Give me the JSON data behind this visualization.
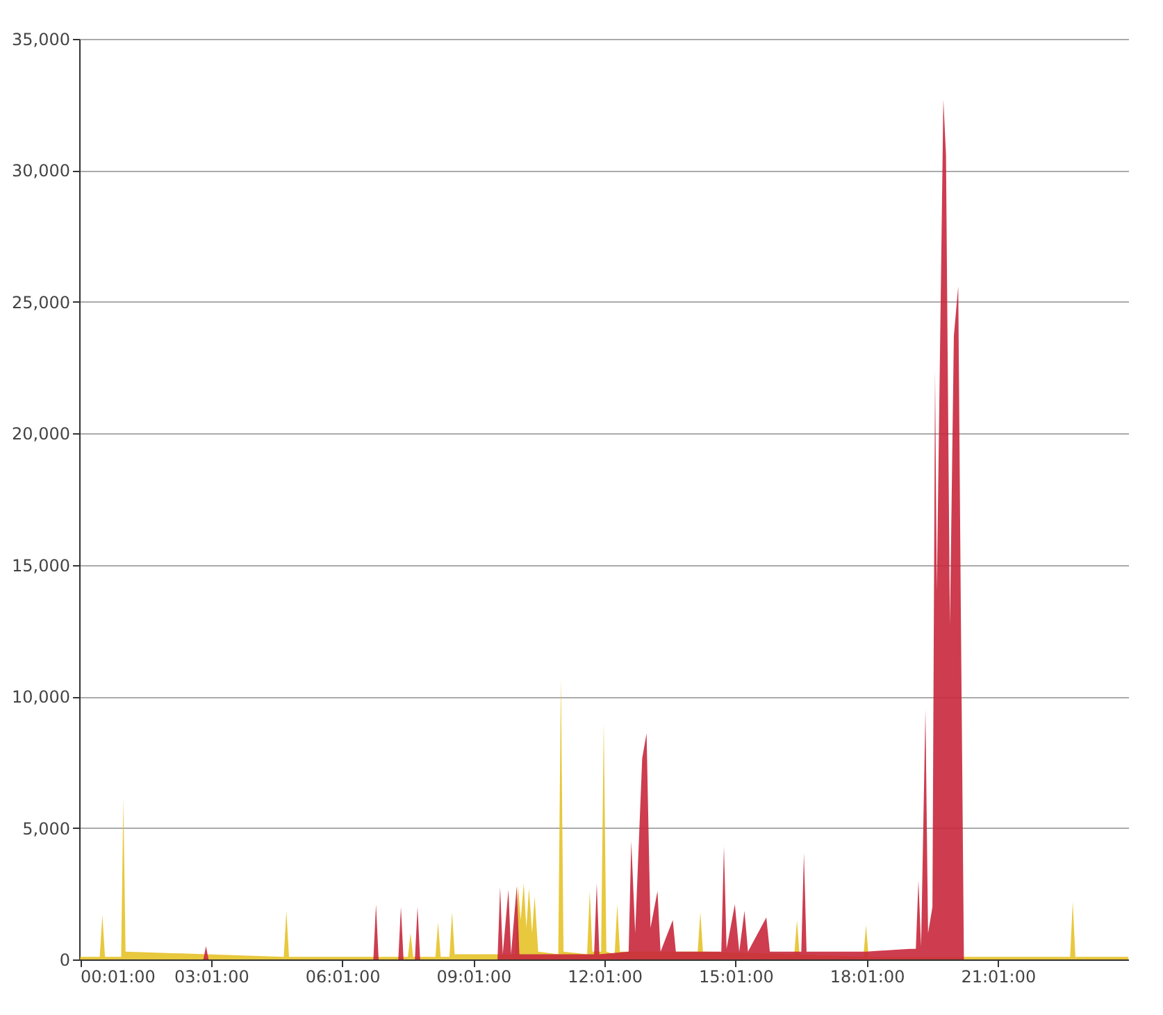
{
  "chart_data": {
    "type": "area",
    "xlim": [
      0,
      24
    ],
    "ylim": [
      0,
      35000
    ],
    "xticks": [
      {
        "value": 0.0167,
        "label": "00:01:00"
      },
      {
        "value": 3.0167,
        "label": "03:01:00"
      },
      {
        "value": 6.0167,
        "label": "06:01:00"
      },
      {
        "value": 9.0167,
        "label": "09:01:00"
      },
      {
        "value": 12.0167,
        "label": "12:01:00"
      },
      {
        "value": 15.0167,
        "label": "15:01:00"
      },
      {
        "value": 18.0167,
        "label": "18:01:00"
      },
      {
        "value": 21.0167,
        "label": "21:01:00"
      }
    ],
    "yticks": [
      0,
      {
        "value": 5000,
        "label": "5,000"
      },
      {
        "value": 10000,
        "label": "10,000"
      },
      {
        "value": 15000,
        "label": "15,000"
      },
      {
        "value": 20000,
        "label": "20,000"
      },
      {
        "value": 25000,
        "label": "25,000"
      },
      {
        "value": 30000,
        "label": "30,000"
      },
      {
        "value": 35000,
        "label": "35,000"
      }
    ],
    "grid": "y",
    "series": [
      {
        "color": "#e6c228",
        "x": [
          0.02,
          0.47,
          0.53,
          0.59,
          0.96,
          1.01,
          1.06,
          4.68,
          4.74,
          4.8,
          7.52,
          7.58,
          7.64,
          8.15,
          8.21,
          8.27,
          8.47,
          8.53,
          8.59,
          9.98,
          10.04,
          10.1,
          10.17,
          10.23,
          10.29,
          10.36,
          10.42,
          10.5,
          10.96,
          11.02,
          11.08,
          11.62,
          11.68,
          11.74,
          11.94,
          12,
          12.06,
          12.25,
          12.31,
          12.37,
          14.15,
          14.21,
          14.27,
          16.36,
          16.42,
          16.48,
          17.94,
          18,
          18.06,
          22.67,
          22.73,
          22.79,
          24
        ],
        "values": [
          100,
          100,
          1700,
          100,
          100,
          6100,
          300,
          100,
          1850,
          100,
          100,
          1000,
          100,
          100,
          1400,
          100,
          100,
          1800,
          200,
          200,
          2800,
          1500,
          2900,
          1200,
          2700,
          1000,
          2400,
          300,
          200,
          10700,
          300,
          200,
          2600,
          300,
          300,
          9000,
          300,
          200,
          2100,
          300,
          300,
          1800,
          300,
          200,
          1500,
          200,
          100,
          1300,
          100,
          100,
          2200,
          100,
          100
        ]
      },
      {
        "color": "#c8283c",
        "x": [
          0.02,
          2.84,
          2.9,
          2.96,
          6.73,
          6.79,
          6.85,
          7.3,
          7.36,
          7.42,
          7.68,
          7.74,
          7.8,
          9.57,
          9.63,
          9.69,
          9.82,
          9.88,
          10.01,
          10.07,
          11.78,
          11.84,
          11.9,
          12.57,
          12.63,
          12.72,
          12.88,
          12.98,
          13.07,
          13.23,
          13.3,
          13.58,
          13.65,
          14.69,
          14.75,
          14.81,
          15,
          15.1,
          15.22,
          15.3,
          15.72,
          15.8,
          16.52,
          16.58,
          16.64,
          18,
          19,
          19.14,
          19.2,
          19.26,
          19.36,
          19.42,
          19.52,
          19.58,
          19.62,
          19.77,
          19.83,
          19.92,
          20.01,
          20.11,
          20.17,
          20.24,
          24
        ],
        "values": [
          0,
          0,
          500,
          0,
          0,
          2100,
          0,
          0,
          2000,
          0,
          0,
          2000,
          0,
          0,
          2750,
          200,
          2650,
          200,
          2800,
          200,
          200,
          2900,
          200,
          300,
          4500,
          1000,
          7650,
          8600,
          1200,
          2600,
          300,
          1500,
          300,
          300,
          4300,
          400,
          2100,
          300,
          1850,
          300,
          1600,
          300,
          300,
          4050,
          300,
          300,
          400,
          400,
          3000,
          500,
          9500,
          1000,
          2000,
          22400,
          14000,
          32700,
          30600,
          12700,
          23700,
          25600,
          13200,
          0,
          0
        ]
      }
    ]
  }
}
